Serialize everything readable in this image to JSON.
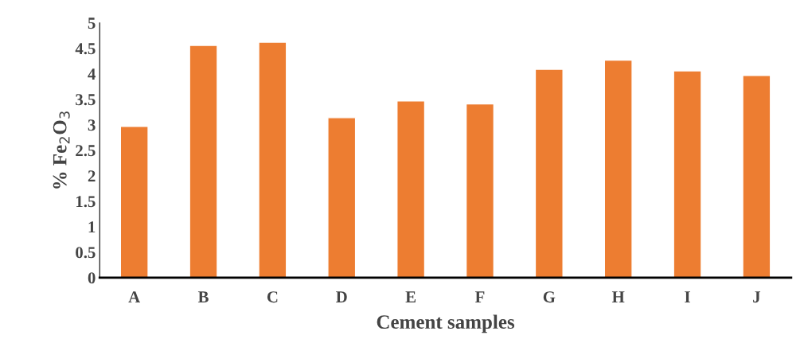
{
  "chart_data": {
    "type": "bar",
    "xlabel": "Cement samples",
    "ylabel": "% Fe$_{2}$O$_{3}$",
    "categories": [
      "A",
      "B",
      "C",
      "D",
      "E",
      "F",
      "G",
      "H",
      "I",
      "J"
    ],
    "values": [
      2.97,
      4.56,
      4.62,
      3.14,
      3.47,
      3.41,
      4.09,
      4.27,
      4.06,
      3.97
    ],
    "color": "#ed7d31",
    "ylim": [
      0,
      5
    ],
    "yticks": [
      0,
      0.5,
      1,
      1.5,
      2,
      2.5,
      3,
      3.5,
      4,
      4.5,
      5
    ],
    "grid": false
  }
}
